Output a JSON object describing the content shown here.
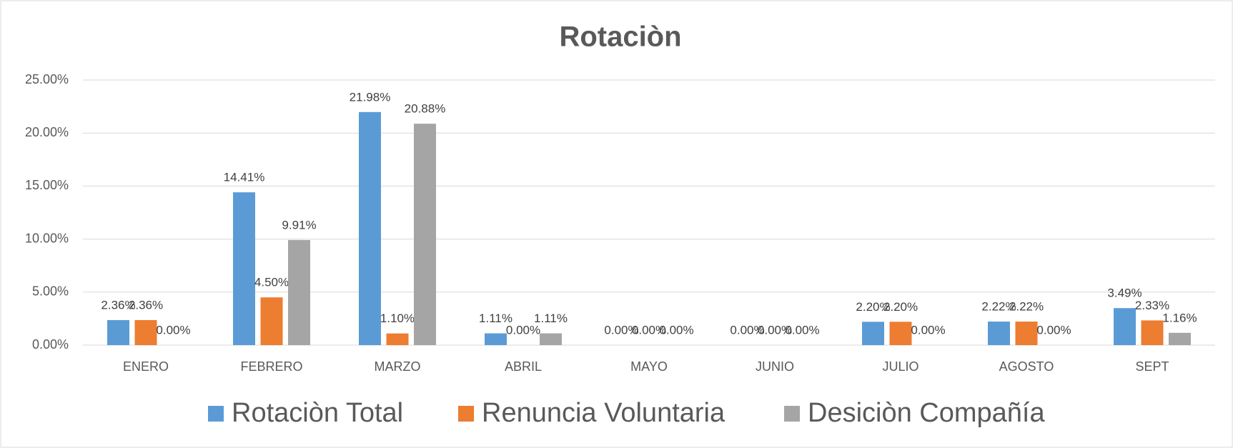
{
  "chart_data": {
    "type": "bar",
    "title": "Rotaciòn",
    "categories": [
      "ENERO",
      "FEBRERO",
      "MARZO",
      "ABRIL",
      "MAYO",
      "JUNIO",
      "JULIO",
      "AGOSTO",
      "SEPT"
    ],
    "series": [
      {
        "name": "Rotaciòn Total",
        "color": "#5b9bd5",
        "values": [
          2.36,
          14.41,
          21.98,
          1.11,
          0,
          0,
          2.2,
          2.22,
          3.49
        ],
        "value_labels": [
          "2.36%",
          "14.41%",
          "21.98%",
          "1.11%",
          "0.00%",
          "0.00%",
          "2.20%",
          "2.22%",
          "3.49%"
        ]
      },
      {
        "name": "Renuncia Voluntaria",
        "color": "#ed7d31",
        "values": [
          2.36,
          4.5,
          1.1,
          0,
          0,
          0,
          2.2,
          2.22,
          2.33
        ],
        "value_labels": [
          "2.36%",
          "4.50%",
          "1.10%",
          "0.00%",
          "0.00%",
          "0.00%",
          "2.20%",
          "2.22%",
          "2.33%"
        ]
      },
      {
        "name": "Desiciòn Compañía",
        "color": "#a5a5a5",
        "values": [
          0,
          9.91,
          20.88,
          1.11,
          0,
          0,
          0,
          0,
          1.16
        ],
        "value_labels": [
          "0.00%",
          "9.91%",
          "20.88%",
          "1.11%",
          "0.00%",
          "0.00%",
          "0.00%",
          "0.00%",
          "1.16%"
        ]
      }
    ],
    "ylim": [
      0,
      25
    ],
    "yticks": [
      {
        "value": 0,
        "label": "0.00%"
      },
      {
        "value": 5,
        "label": "5.00%"
      },
      {
        "value": 10,
        "label": "10.00%"
      },
      {
        "value": 15,
        "label": "15.00%"
      },
      {
        "value": 20,
        "label": "20.00%"
      },
      {
        "value": 25,
        "label": "25.00%"
      }
    ],
    "grid": true,
    "legend": "bottom"
  }
}
